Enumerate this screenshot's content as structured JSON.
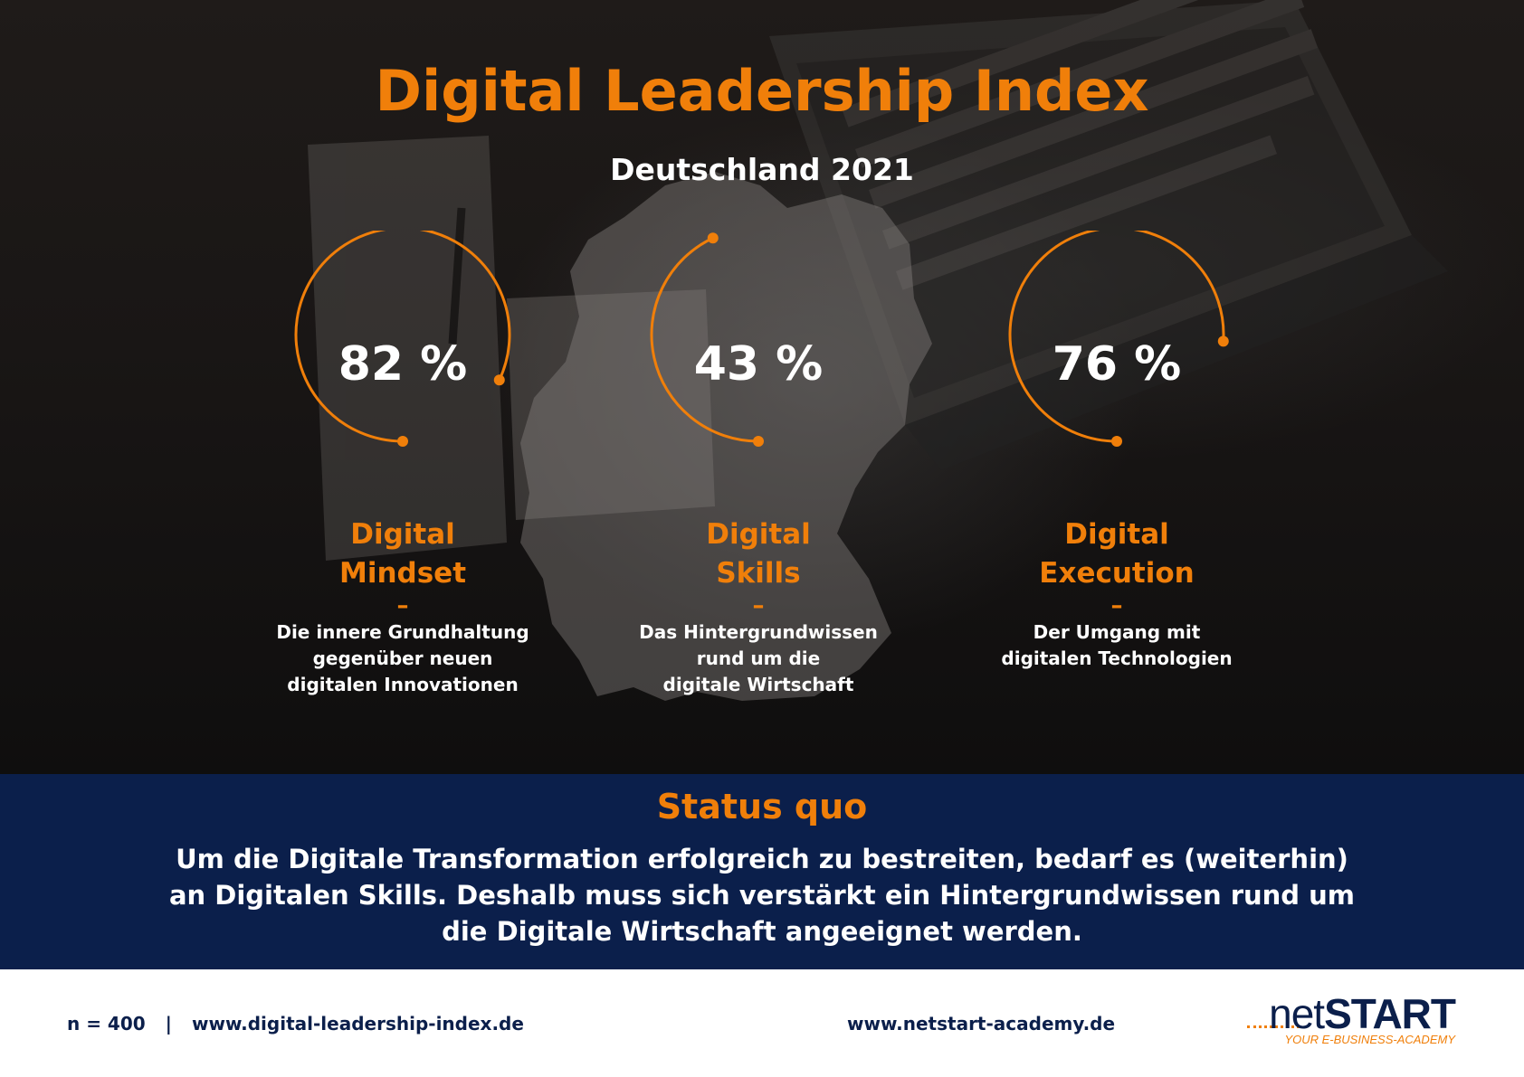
{
  "header": {
    "title": "Digital Leadership Index",
    "subtitle": "Deutschland 2021"
  },
  "colors": {
    "accent": "#f07f0a",
    "navy": "#0b1f4b",
    "text_light": "#ffffff"
  },
  "chart_data": {
    "type": "radial-progress",
    "title": "Digital Leadership Index",
    "subtitle": "Deutschland 2021",
    "series": [
      {
        "value": 82,
        "value_label": "82 %",
        "name_lines": [
          "Digital",
          "Mindset"
        ],
        "dash": "–",
        "description_lines": [
          "Die innere Grundhaltung",
          "gegenüber neuen",
          "digitalen Innovationen"
        ]
      },
      {
        "value": 43,
        "value_label": "43 %",
        "name_lines": [
          "Digital",
          "Skills"
        ],
        "dash": "–",
        "description_lines": [
          "Das Hintergrundwissen",
          "rund um die",
          "digitale Wirtschaft"
        ]
      },
      {
        "value": 76,
        "value_label": "76 %",
        "name_lines": [
          "Digital",
          "Execution"
        ],
        "dash": "–",
        "description_lines": [
          "Der Umgang mit",
          "digitalen Technologien"
        ]
      }
    ]
  },
  "status": {
    "title": "Status quo",
    "lines": [
      "Um die Digitale Transformation erfolgreich zu bestreiten, bedarf es (weiterhin)",
      "an Digitalen Skills. Deshalb muss sich verstärkt ein Hintergrundwissen rund um",
      "die Digitale Wirtschaft angeeignet werden."
    ]
  },
  "footer": {
    "sample": "n = 400",
    "separator": "|",
    "site_index": "www.digital-leadership-index.de",
    "site_academy": "www.netstart-academy.de",
    "logo_net": "net",
    "logo_start": "START",
    "logo_tagline": "YOUR E-BUSINESS-ACADEMY"
  }
}
